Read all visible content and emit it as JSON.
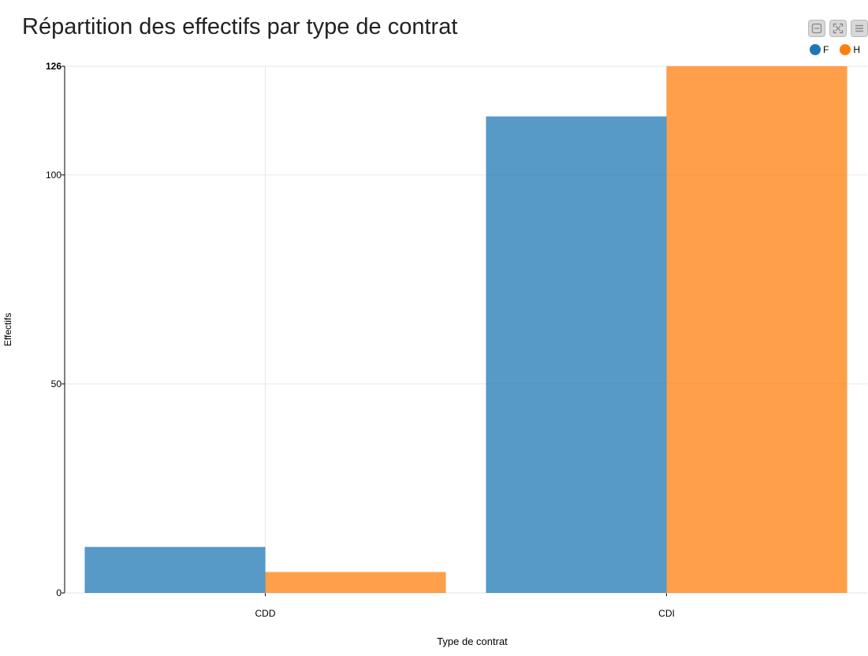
{
  "header": {
    "title": "Répartition des effectifs par type de contrat"
  },
  "toolbar": [
    {
      "name": "collapse-button",
      "icon": "minus-box-icon"
    },
    {
      "name": "fullscreen-button",
      "icon": "expand-icon"
    },
    {
      "name": "menu-button",
      "icon": "hamburger-menu-icon"
    }
  ],
  "legend": [
    {
      "label": "F",
      "color": "#1f77b4"
    },
    {
      "label": "H",
      "color": "#ff7f0e"
    }
  ],
  "chart_data": {
    "type": "bar",
    "title": "Répartition des effectifs par type de contrat",
    "xlabel": "Type de contrat",
    "ylabel": "Effectifs",
    "categories": [
      "CDD",
      "CDI"
    ],
    "series": [
      {
        "name": "F",
        "color": "#1f77b4",
        "values": [
          11,
          114
        ]
      },
      {
        "name": "H",
        "color": "#ff7f0e",
        "values": [
          5,
          126
        ]
      }
    ],
    "ylim": [
      0,
      126
    ],
    "yticks": [
      "0",
      "50",
      "100",
      "126"
    ],
    "grid": true,
    "legend_position": "top-right"
  }
}
